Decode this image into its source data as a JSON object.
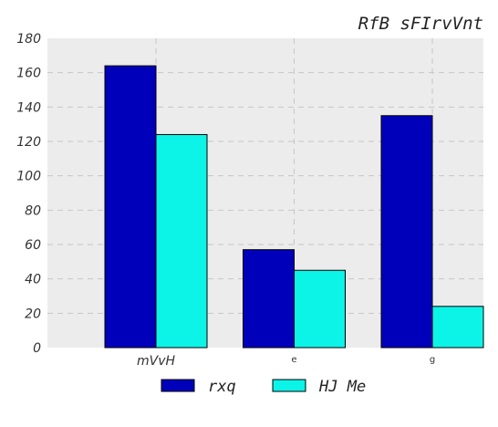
{
  "chart_data": {
    "type": "bar",
    "title": "RfB sFIrvVnt",
    "categories": [
      "mVvH",
      "e",
      "g"
    ],
    "series": [
      {
        "name": "rxq",
        "values": [
          164,
          57,
          135
        ],
        "color": "#0000bb"
      },
      {
        "name": "HJ Me",
        "values": [
          124,
          45,
          24
        ],
        "color": "#0cf4e8"
      }
    ],
    "ylim": [
      0,
      180
    ],
    "yticks": [
      0,
      20,
      40,
      60,
      80,
      100,
      120,
      140,
      160,
      180
    ],
    "grid": true,
    "legend": "bottom-center",
    "background": "#ececec"
  }
}
